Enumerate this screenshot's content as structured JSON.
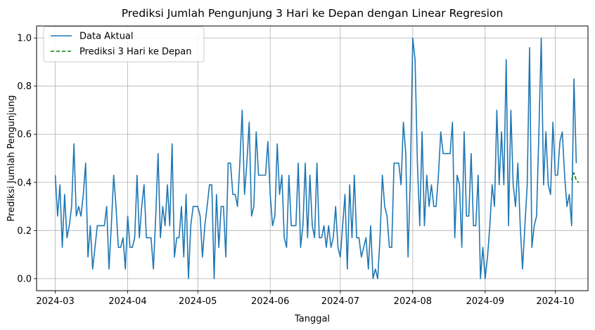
{
  "chart_data": {
    "type": "line",
    "title": "Prediksi Jumlah Pengunjung 3 Hari ke Depan dengan Linear Regresion",
    "xlabel": "Tanggal",
    "ylabel": "Prediksi Jumlah Pengunjung",
    "xlim": [
      "2024-02-22",
      "2024-10-15"
    ],
    "ylim": [
      -0.05,
      1.05
    ],
    "x_ticks": [
      "2024-03",
      "2024-04",
      "2024-05",
      "2024-06",
      "2024-07",
      "2024-08",
      "2024-09",
      "2024-10"
    ],
    "y_ticks": [
      "0.0",
      "0.2",
      "0.4",
      "0.6",
      "0.8",
      "1.0"
    ],
    "grid": true,
    "legend_position": "top-left",
    "series": [
      {
        "name": "Data Aktual",
        "color": "#1f77b4",
        "style": "solid",
        "x_start": "2024-03-01",
        "step": "1 day",
        "values": [
          0.43,
          0.26,
          0.39,
          0.13,
          0.35,
          0.17,
          0.22,
          0.3,
          0.56,
          0.26,
          0.3,
          0.26,
          0.35,
          0.48,
          0.09,
          0.22,
          0.04,
          0.13,
          0.22,
          0.22,
          0.22,
          0.22,
          0.3,
          0.04,
          0.22,
          0.43,
          0.3,
          0.13,
          0.13,
          0.17,
          0.04,
          0.26,
          0.13,
          0.13,
          0.17,
          0.43,
          0.17,
          0.3,
          0.39,
          0.17,
          0.17,
          0.17,
          0.04,
          0.26,
          0.52,
          0.17,
          0.3,
          0.22,
          0.39,
          0.22,
          0.56,
          0.09,
          0.17,
          0.17,
          0.3,
          0.09,
          0.35,
          0.0,
          0.22,
          0.3,
          0.3,
          0.3,
          0.26,
          0.09,
          0.22,
          0.3,
          0.39,
          0.39,
          0.0,
          0.35,
          0.13,
          0.3,
          0.3,
          0.09,
          0.48,
          0.48,
          0.35,
          0.35,
          0.3,
          0.48,
          0.7,
          0.35,
          0.48,
          0.65,
          0.26,
          0.3,
          0.61,
          0.43,
          0.43,
          0.43,
          0.43,
          0.57,
          0.35,
          0.22,
          0.26,
          0.56,
          0.35,
          0.43,
          0.17,
          0.13,
          0.43,
          0.22,
          0.22,
          0.22,
          0.48,
          0.13,
          0.22,
          0.48,
          0.17,
          0.43,
          0.22,
          0.17,
          0.48,
          0.17,
          0.17,
          0.22,
          0.13,
          0.22,
          0.13,
          0.17,
          0.3,
          0.13,
          0.09,
          0.22,
          0.35,
          0.04,
          0.39,
          0.17,
          0.43,
          0.17,
          0.17,
          0.09,
          0.13,
          0.17,
          0.04,
          0.22,
          0.0,
          0.04,
          0.0,
          0.17,
          0.43,
          0.3,
          0.26,
          0.13,
          0.13,
          0.48,
          0.48,
          0.48,
          0.39,
          0.65,
          0.52,
          0.09,
          0.43,
          1.0,
          0.91,
          0.48,
          0.22,
          0.61,
          0.22,
          0.43,
          0.3,
          0.39,
          0.3,
          0.3,
          0.43,
          0.61,
          0.52,
          0.52,
          0.52,
          0.52,
          0.65,
          0.17,
          0.43,
          0.39,
          0.13,
          0.61,
          0.26,
          0.26,
          0.52,
          0.22,
          0.22,
          0.43,
          0.0,
          0.13,
          0.0,
          0.09,
          0.22,
          0.39,
          0.3,
          0.7,
          0.39,
          0.61,
          0.39,
          0.91,
          0.22,
          0.7,
          0.39,
          0.3,
          0.48,
          0.22,
          0.04,
          0.22,
          0.39,
          0.96,
          0.13,
          0.22,
          0.26,
          0.61,
          1.0,
          0.39,
          0.61,
          0.39,
          0.35,
          0.65,
          0.43,
          0.43,
          0.57,
          0.61,
          0.43,
          0.3,
          0.35,
          0.22,
          0.83,
          0.48
        ]
      },
      {
        "name": "Prediksi 3 Hari ke Depan",
        "color": "#008000",
        "style": "dashed",
        "x": [
          "2024-10-08",
          "2024-10-09",
          "2024-10-10",
          "2024-10-11"
        ],
        "values": [
          0.41,
          0.44,
          0.41,
          0.4
        ]
      }
    ]
  }
}
